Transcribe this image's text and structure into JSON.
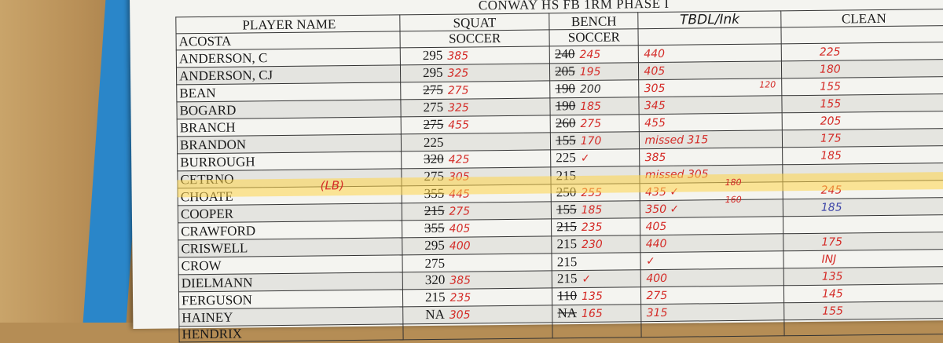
{
  "sheet": {
    "title": "CONWAY HS FB 1RM PHASE I",
    "headers": {
      "name": "PLAYER NAME",
      "squat": "SQUAT",
      "bench": "BENCH",
      "tbdl": "TBDL/Ink",
      "clean": "CLEAN"
    },
    "subheaders": {
      "squat": "SOCCER",
      "bench": "SOCCER"
    },
    "rows": [
      {
        "name": "ACOSTA",
        "sq": "",
        "sq_strike": false,
        "sq_hw": "",
        "bn": "",
        "bn_strike": false,
        "bn_hw": "",
        "tb": "",
        "cl": ""
      },
      {
        "name": "ANDERSON, C",
        "sq": "295",
        "sq_strike": false,
        "sq_hw": "385",
        "bn": "240",
        "bn_strike": true,
        "bn_hw": "245",
        "tb": "440",
        "cl": "225"
      },
      {
        "name": "ANDERSON, CJ",
        "sq": "295",
        "sq_strike": false,
        "sq_hw": "325",
        "bn": "205",
        "bn_strike": true,
        "bn_hw": "195",
        "tb": "405",
        "cl": "180"
      },
      {
        "name": "BEAN",
        "sq": "275",
        "sq_strike": true,
        "sq_hw": "275",
        "bn": "190",
        "bn_strike": true,
        "bn_hw": "200",
        "tb": "305",
        "cl": "155"
      },
      {
        "name": "BOGARD",
        "sq": "275",
        "sq_strike": false,
        "sq_hw": "325",
        "bn": "190",
        "bn_strike": true,
        "bn_hw": "185",
        "tb": "345",
        "cl": "155"
      },
      {
        "name": "BRANCH",
        "sq": "275",
        "sq_strike": true,
        "sq_hw": "455",
        "bn": "260",
        "bn_strike": true,
        "bn_hw": "275",
        "tb": "455",
        "cl": "205"
      },
      {
        "name": "BRANDON",
        "sq": "225",
        "sq_strike": false,
        "sq_hw": "",
        "bn": "155",
        "bn_strike": true,
        "bn_hw": "170",
        "tb": "missed 315",
        "cl": "175"
      },
      {
        "name": "BURROUGH",
        "sq": "320",
        "sq_strike": true,
        "sq_hw": "425",
        "bn": "225",
        "bn_strike": false,
        "bn_hw": "✓",
        "tb": "385",
        "cl": "185"
      },
      {
        "name": "CETRNO",
        "sq": "275",
        "sq_strike": false,
        "sq_hw": "305",
        "bn": "215",
        "bn_strike": false,
        "bn_hw": "",
        "tb": "missed 305",
        "cl": ""
      },
      {
        "name": "CHOATE",
        "sq": "355",
        "sq_strike": true,
        "sq_hw": "445",
        "bn": "250",
        "bn_strike": true,
        "bn_hw": "255",
        "tb": "435 ✓",
        "cl": "245"
      },
      {
        "name": "COOPER",
        "sq": "215",
        "sq_strike": true,
        "sq_hw": "275",
        "bn": "155",
        "bn_strike": true,
        "bn_hw": "185",
        "tb": "350 ✓",
        "cl": "185"
      },
      {
        "name": "CRAWFORD",
        "sq": "355",
        "sq_strike": true,
        "sq_hw": "405",
        "bn": "215",
        "bn_strike": true,
        "bn_hw": "235",
        "tb": "405",
        "cl": ""
      },
      {
        "name": "CRISWELL",
        "sq": "295",
        "sq_strike": false,
        "sq_hw": "400",
        "bn": "215",
        "bn_strike": false,
        "bn_hw": "230",
        "tb": "440",
        "cl": "175"
      },
      {
        "name": "CROW",
        "sq": "275",
        "sq_strike": false,
        "sq_hw": "",
        "bn": "215",
        "bn_strike": false,
        "bn_hw": "",
        "tb": "✓",
        "cl": "INJ"
      },
      {
        "name": "DIELMANN",
        "sq": "320",
        "sq_strike": false,
        "sq_hw": "385",
        "bn": "215",
        "bn_strike": false,
        "bn_hw": "✓",
        "tb": "400",
        "cl": "135"
      },
      {
        "name": "FERGUSON",
        "sq": "215",
        "sq_strike": false,
        "sq_hw": "235",
        "bn": "110",
        "bn_strike": true,
        "bn_hw": "135",
        "tb": "275",
        "cl": "145"
      },
      {
        "name": "HAINEY",
        "sq": "NA",
        "sq_strike": false,
        "sq_hw": "305",
        "bn": "NA",
        "bn_strike": true,
        "bn_hw": "165",
        "tb": "315",
        "cl": "155"
      },
      {
        "name": "HENDRIX",
        "sq": "",
        "sq_strike": false,
        "sq_hw": "",
        "bn": "",
        "bn_strike": false,
        "bn_hw": "",
        "tb": "",
        "cl": ""
      }
    ],
    "annotations": {
      "choate_pos": "(LB)",
      "bean_extra": "120",
      "choate_extra": "180",
      "cooper_extra": "160"
    }
  }
}
